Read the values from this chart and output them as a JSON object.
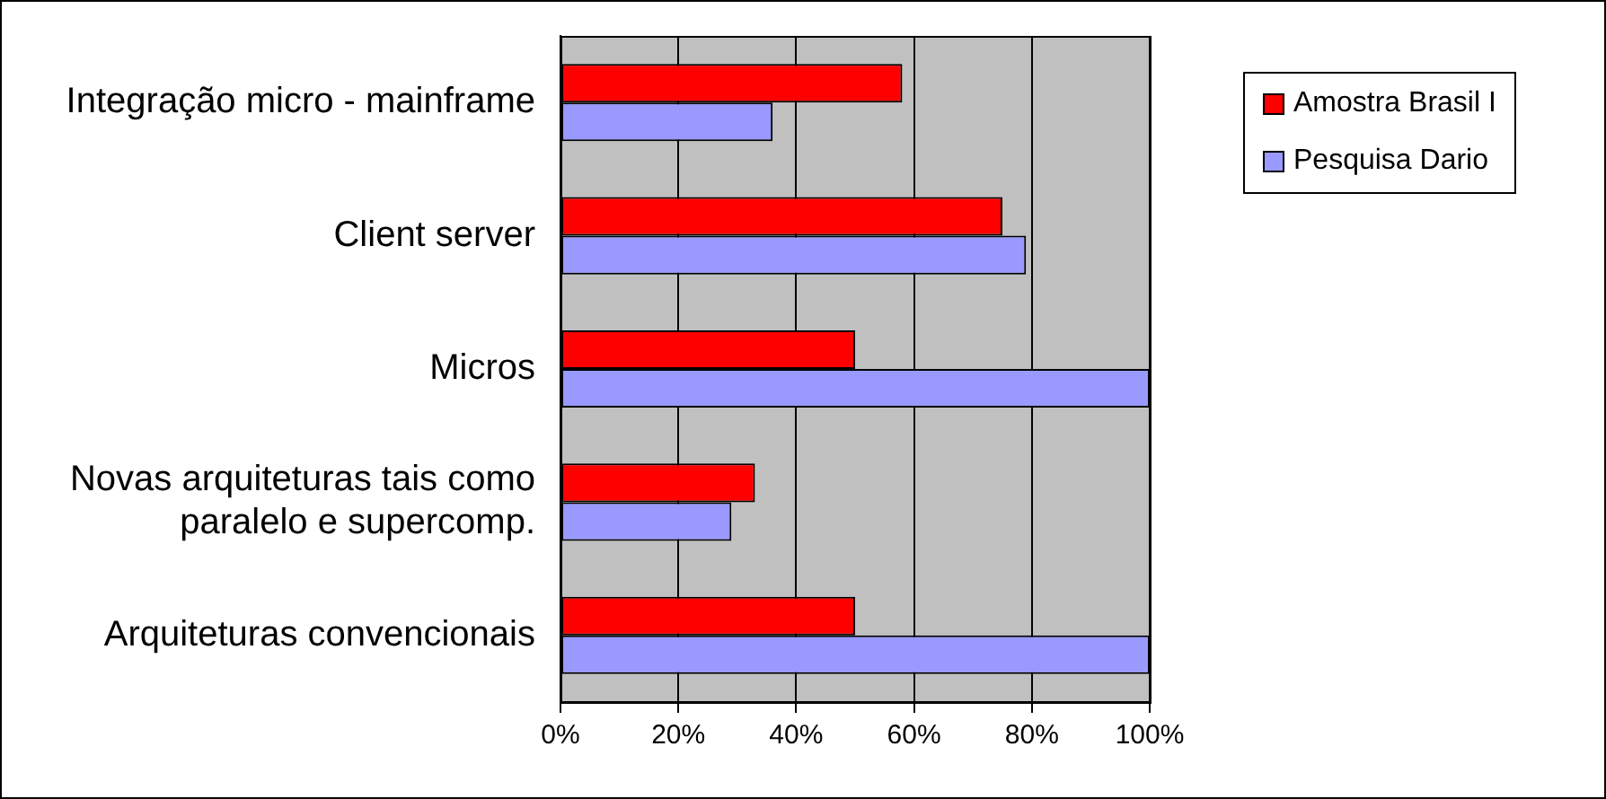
{
  "chart_data": {
    "type": "bar",
    "orientation": "horizontal",
    "categories": [
      "Integração micro - mainframe",
      "Client server",
      "Micros",
      "Novas arquiteturas tais como\nparalelo e supercomp.",
      "Arquiteturas convencionais"
    ],
    "series": [
      {
        "name": "Amostra Brasil I",
        "color": "#ff0000",
        "values": [
          58,
          75,
          50,
          33,
          50
        ]
      },
      {
        "name": "Pesquisa Dario",
        "color": "#9999ff",
        "values": [
          36,
          79,
          100,
          29,
          100
        ]
      }
    ],
    "xlim": [
      0,
      100
    ],
    "xticks": [
      {
        "value": 0,
        "label": "0%"
      },
      {
        "value": 20,
        "label": "20%"
      },
      {
        "value": 40,
        "label": "40%"
      },
      {
        "value": 60,
        "label": "60%"
      },
      {
        "value": 80,
        "label": "80%"
      },
      {
        "value": 100,
        "label": "100%"
      }
    ],
    "grid": "x",
    "legend": "top right"
  }
}
